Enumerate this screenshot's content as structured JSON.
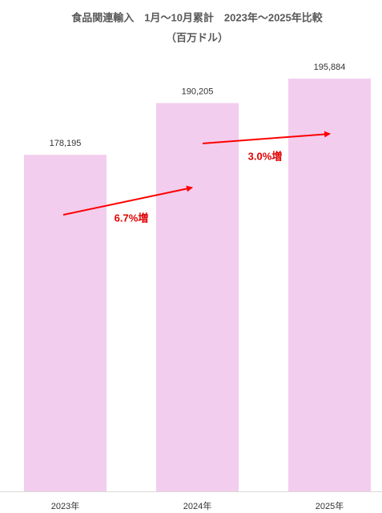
{
  "chart_data": {
    "type": "bar",
    "title": "食品関連輸入　1月〜10月累計　2023年〜2025年比較",
    "subtitle": "（百万ドル）",
    "categories": [
      "2023年",
      "2024年",
      "2025年"
    ],
    "values": [
      178195,
      190205,
      195884
    ],
    "value_labels": [
      "178,195",
      "190,205",
      "195,884"
    ],
    "color": "#f2cdee",
    "ylim": [
      100000,
      200000
    ],
    "annotations": [
      "6.7%増",
      "3.0%増"
    ]
  }
}
